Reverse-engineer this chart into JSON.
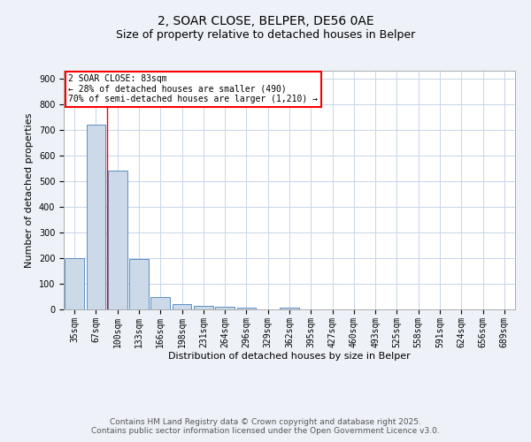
{
  "title1": "2, SOAR CLOSE, BELPER, DE56 0AE",
  "title2": "Size of property relative to detached houses in Belper",
  "xlabel": "Distribution of detached houses by size in Belper",
  "ylabel": "Number of detached properties",
  "categories": [
    "35sqm",
    "67sqm",
    "100sqm",
    "133sqm",
    "166sqm",
    "198sqm",
    "231sqm",
    "264sqm",
    "296sqm",
    "329sqm",
    "362sqm",
    "395sqm",
    "427sqm",
    "460sqm",
    "493sqm",
    "525sqm",
    "558sqm",
    "591sqm",
    "624sqm",
    "656sqm",
    "689sqm"
  ],
  "values": [
    200,
    720,
    540,
    195,
    47,
    20,
    15,
    12,
    8,
    0,
    6,
    0,
    0,
    0,
    0,
    0,
    0,
    0,
    0,
    0,
    0
  ],
  "bar_color": "#ccd9e8",
  "bar_edge_color": "#5a8fc4",
  "red_line_x": 1.5,
  "ylim": [
    0,
    930
  ],
  "yticks": [
    0,
    100,
    200,
    300,
    400,
    500,
    600,
    700,
    800,
    900
  ],
  "annotation_box_text": "2 SOAR CLOSE: 83sqm\n← 28% of detached houses are smaller (490)\n70% of semi-detached houses are larger (1,210) →",
  "footer_text": "Contains HM Land Registry data © Crown copyright and database right 2025.\nContains public sector information licensed under the Open Government Licence v3.0.",
  "background_color": "#eef2f8",
  "plot_background_color": "#ffffff",
  "grid_color": "#c8d4e8",
  "title_fontsize": 10,
  "subtitle_fontsize": 9,
  "tick_fontsize": 7,
  "label_fontsize": 8,
  "annotation_fontsize": 7,
  "footer_fontsize": 6.5
}
